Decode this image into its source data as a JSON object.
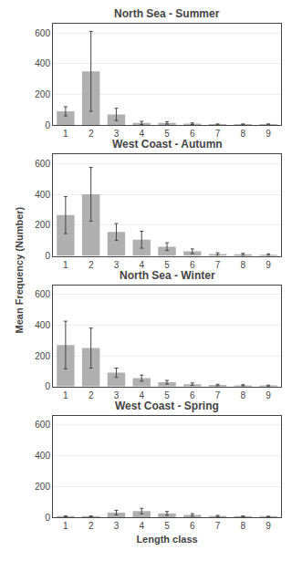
{
  "chart_data": [
    {
      "type": "bar",
      "title": "North Sea - Summer",
      "categories": [
        1,
        2,
        3,
        4,
        5,
        6,
        7,
        8,
        9
      ],
      "values": [
        90,
        350,
        70,
        15,
        15,
        10,
        5,
        5,
        5
      ],
      "errors": [
        30,
        260,
        40,
        10,
        8,
        5,
        3,
        3,
        3
      ],
      "color": "#b0b0b0",
      "ylim": [
        0,
        660
      ],
      "yticks": [
        0,
        200,
        400,
        600
      ],
      "grid": true
    },
    {
      "type": "bar",
      "title": "West Coast - Autumn",
      "categories": [
        1,
        2,
        3,
        4,
        5,
        6,
        7,
        8,
        9
      ],
      "values": [
        265,
        400,
        155,
        105,
        60,
        30,
        12,
        10,
        8
      ],
      "errors": [
        120,
        175,
        55,
        55,
        25,
        15,
        8,
        6,
        5
      ],
      "color": "#b0b0b0",
      "ylim": [
        0,
        660
      ],
      "yticks": [
        0,
        200,
        400,
        600
      ],
      "grid": true,
      "ylabel": "Mean Frequency (Number)"
    },
    {
      "type": "bar",
      "title": "North Sea - Winter",
      "categories": [
        1,
        2,
        3,
        4,
        5,
        6,
        7,
        8,
        9
      ],
      "values": [
        270,
        250,
        90,
        55,
        28,
        15,
        10,
        8,
        6
      ],
      "errors": [
        155,
        130,
        30,
        20,
        12,
        8,
        5,
        4,
        3
      ],
      "color": "#b0b0b0",
      "ylim": [
        0,
        660
      ],
      "yticks": [
        0,
        200,
        400,
        600
      ],
      "grid": true
    },
    {
      "type": "bar",
      "title": "West Coast - Spring",
      "categories": [
        1,
        2,
        3,
        4,
        5,
        6,
        7,
        8,
        9
      ],
      "values": [
        5,
        5,
        30,
        40,
        25,
        15,
        8,
        5,
        4
      ],
      "errors": [
        3,
        3,
        15,
        18,
        12,
        8,
        4,
        3,
        2
      ],
      "color": "#b0b0b0",
      "ylim": [
        0,
        660
      ],
      "yticks": [
        0,
        200,
        400,
        600
      ],
      "grid": true,
      "xlabel": "Length class"
    }
  ]
}
